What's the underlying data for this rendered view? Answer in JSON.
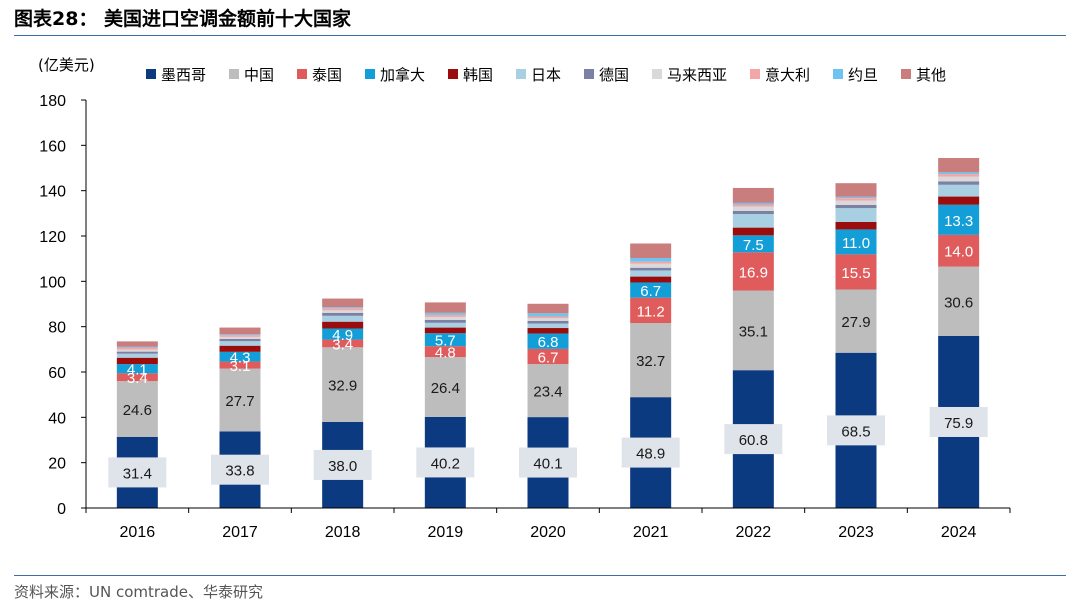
{
  "header": {
    "title": "图表28： 美国进口空调金额前十大国家",
    "source": "资料来源：UN comtrade、华泰研究"
  },
  "chart_data": {
    "type": "bar",
    "stacked": true,
    "unit_label": "(亿美元)",
    "ylim": [
      0,
      180
    ],
    "yticks": [
      0,
      20,
      40,
      60,
      80,
      100,
      120,
      140,
      160,
      180
    ],
    "categories": [
      "2016",
      "2017",
      "2018",
      "2019",
      "2020",
      "2021",
      "2022",
      "2023",
      "2024"
    ],
    "legend_position": "top",
    "series": [
      {
        "name": "墨西哥",
        "color": "#0b3a80",
        "values": [
          31.4,
          33.8,
          38.0,
          40.2,
          40.1,
          48.9,
          60.8,
          68.5,
          75.9
        ]
      },
      {
        "name": "中国",
        "color": "#bdbdbd",
        "values": [
          24.6,
          27.7,
          32.9,
          26.4,
          23.4,
          32.7,
          35.1,
          27.9,
          30.6
        ]
      },
      {
        "name": "泰国",
        "color": "#e05c5c",
        "values": [
          3.4,
          3.1,
          3.4,
          4.8,
          6.7,
          11.2,
          16.9,
          15.5,
          14.0
        ]
      },
      {
        "name": "加拿大",
        "color": "#139ed8",
        "values": [
          4.1,
          4.3,
          4.9,
          5.7,
          6.8,
          6.7,
          7.5,
          11.0,
          13.3
        ]
      },
      {
        "name": "韩国",
        "color": "#9b0d0d",
        "values": [
          2.8,
          2.7,
          3.0,
          2.5,
          2.4,
          2.6,
          3.4,
          3.3,
          3.6
        ]
      },
      {
        "name": "日本",
        "color": "#a9cfe2",
        "values": [
          1.8,
          2.0,
          2.6,
          2.1,
          2.0,
          2.7,
          6.0,
          6.1,
          5.2
        ]
      },
      {
        "name": "德国",
        "color": "#7b80a4",
        "values": [
          0.9,
          1.0,
          1.3,
          1.3,
          1.1,
          1.2,
          1.4,
          1.4,
          1.5
        ]
      },
      {
        "name": "马来西亚",
        "color": "#d9d9d9",
        "values": [
          0.9,
          0.9,
          1.1,
          1.3,
          1.2,
          1.8,
          1.9,
          1.9,
          2.1
        ]
      },
      {
        "name": "意大利",
        "color": "#f4a6a6",
        "values": [
          0.9,
          0.8,
          0.9,
          0.9,
          0.8,
          0.9,
          0.9,
          1.1,
          1.1
        ]
      },
      {
        "name": "约旦",
        "color": "#6fc3f0",
        "values": [
          0.4,
          0.4,
          0.5,
          0.9,
          1.4,
          1.6,
          0.7,
          0.6,
          0.8
        ]
      },
      {
        "name": "其他",
        "color": "#c97d7d",
        "values": [
          2.3,
          2.9,
          3.8,
          4.6,
          4.2,
          6.4,
          6.6,
          6.0,
          6.3
        ]
      }
    ],
    "data_labels": {
      "墨西哥": [
        "31.4",
        "33.8",
        "38.0",
        "40.2",
        "40.1",
        "48.9",
        "60.8",
        "68.5",
        "75.9"
      ],
      "中国": [
        "24.6",
        "27.7",
        "32.9",
        "26.4",
        "23.4",
        "32.7",
        "35.1",
        "27.9",
        "30.6"
      ],
      "泰国": [
        "3.4",
        "3.1",
        "3.4",
        "4.8",
        "6.7",
        "11.2",
        "16.9",
        "15.5",
        "14.0"
      ],
      "加拿大": [
        "4.1",
        "4.3",
        "4.9",
        "5.7",
        "6.8",
        "6.7",
        "7.5",
        "11.0",
        "13.3"
      ]
    }
  }
}
